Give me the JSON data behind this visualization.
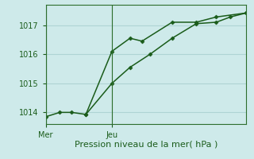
{
  "xlabel": "Pression niveau de la mer( hPa )",
  "background_color": "#ceeaea",
  "grid_color": "#aed4d4",
  "line_color": "#1a5c1a",
  "spine_color": "#2d6e2d",
  "ylim": [
    1013.6,
    1017.7
  ],
  "yticks": [
    1014,
    1015,
    1016,
    1017
  ],
  "xlim": [
    0,
    10
  ],
  "mer_x": 0,
  "jeu_x": 3.3,
  "series1_x": [
    0.0,
    0.7,
    1.3,
    2.0,
    3.3,
    4.2,
    4.8,
    6.3,
    7.5,
    8.5,
    10.0
  ],
  "series1_y": [
    1013.85,
    1014.0,
    1014.0,
    1013.93,
    1016.1,
    1016.55,
    1016.45,
    1017.1,
    1017.1,
    1017.28,
    1017.42
  ],
  "series2_x": [
    2.0,
    3.3,
    4.2,
    5.2,
    6.3,
    7.5,
    8.5,
    9.2,
    10.0
  ],
  "series2_y": [
    1013.93,
    1015.0,
    1015.55,
    1016.0,
    1016.55,
    1017.05,
    1017.1,
    1017.28,
    1017.42
  ],
  "xlabel_fontsize": 8,
  "ytick_fontsize": 7,
  "xtick_fontsize": 7
}
